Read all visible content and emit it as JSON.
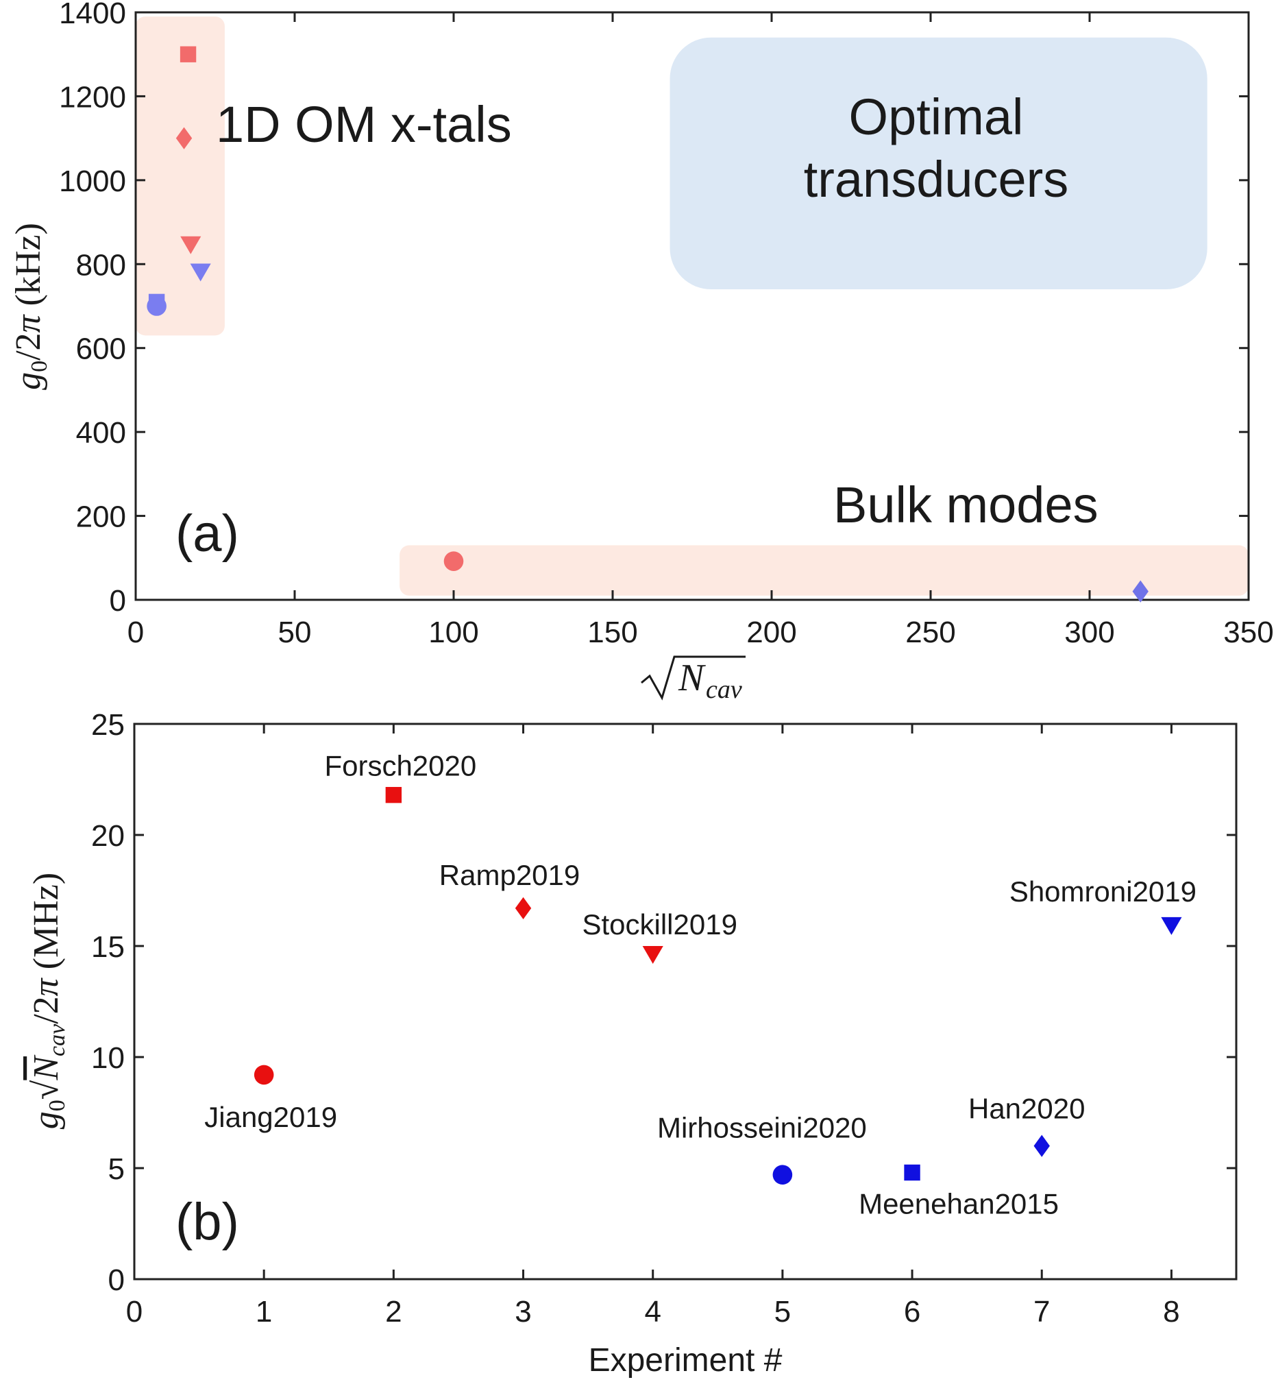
{
  "chart_data": [
    {
      "panel_label": "(a)",
      "type": "scatter",
      "xlim": [
        0,
        350
      ],
      "ylim": [
        0,
        1400
      ],
      "xticks": [
        0,
        50,
        100,
        150,
        200,
        250,
        300,
        350
      ],
      "yticks": [
        0,
        200,
        400,
        600,
        800,
        1000,
        1200,
        1400
      ],
      "xlabel": "√N_cav",
      "ylabel": "g0/2π (kHz)",
      "regions": [
        {
          "label": "1D OM x-tals",
          "x": [
            0,
            28
          ],
          "y": [
            630,
            1390
          ],
          "color": "#fde9e1"
        },
        {
          "label": "Bulk modes",
          "x": [
            83,
            350
          ],
          "y": [
            10,
            130
          ],
          "color": "#fde9e1"
        },
        {
          "label": "Optimal transducers",
          "x": [
            168,
            337
          ],
          "y": [
            740,
            1340
          ],
          "color": "#dce8f5"
        }
      ],
      "points": [
        {
          "x": 16.5,
          "y": 1300,
          "marker": "square",
          "color": "#f26b6b"
        },
        {
          "x": 15.2,
          "y": 1100,
          "marker": "diamond",
          "color": "#f26b6b"
        },
        {
          "x": 17.3,
          "y": 845,
          "marker": "triangle-down",
          "color": "#f26b6b"
        },
        {
          "x": 20.4,
          "y": 780,
          "marker": "triangle-down",
          "color": "#7a7df0"
        },
        {
          "x": 6.6,
          "y": 710,
          "marker": "square",
          "color": "#7a7df0"
        },
        {
          "x": 6.6,
          "y": 700,
          "marker": "circle",
          "color": "#7a7df0"
        },
        {
          "x": 100,
          "y": 92,
          "marker": "circle",
          "color": "#f26b6b"
        },
        {
          "x": 316,
          "y": 20,
          "marker": "diamond",
          "color": "#6f72e8"
        }
      ]
    },
    {
      "panel_label": "(b)",
      "type": "scatter",
      "xlim": [
        0,
        8.5
      ],
      "ylim": [
        0,
        25
      ],
      "xticks": [
        0,
        1,
        2,
        3,
        4,
        5,
        6,
        7,
        8
      ],
      "yticks": [
        0,
        5,
        10,
        15,
        20,
        25
      ],
      "xlabel": "Experiment #",
      "ylabel": "g0√N_cav/2π (MHz)",
      "points": [
        {
          "x": 1,
          "y": 9.2,
          "label": "Jiang2019",
          "marker": "circle",
          "color": "#e81010"
        },
        {
          "x": 2,
          "y": 21.8,
          "label": "Forsch2020",
          "marker": "square",
          "color": "#e81010"
        },
        {
          "x": 3,
          "y": 16.7,
          "label": "Ramp2019",
          "marker": "diamond",
          "color": "#e81010"
        },
        {
          "x": 4,
          "y": 14.6,
          "label": "Stockill2019",
          "marker": "triangle-down",
          "color": "#e81010"
        },
        {
          "x": 5,
          "y": 4.7,
          "label": "Mirhosseini2020",
          "marker": "circle",
          "color": "#1010e0"
        },
        {
          "x": 6,
          "y": 4.8,
          "label": "Meenehan2015",
          "marker": "square",
          "color": "#1010e0"
        },
        {
          "x": 7,
          "y": 6.0,
          "label": "Han2020",
          "marker": "diamond",
          "color": "#1010e0"
        },
        {
          "x": 8,
          "y": 15.9,
          "label": "Shomroni2019",
          "marker": "triangle-down",
          "color": "#1010e0"
        }
      ]
    }
  ]
}
